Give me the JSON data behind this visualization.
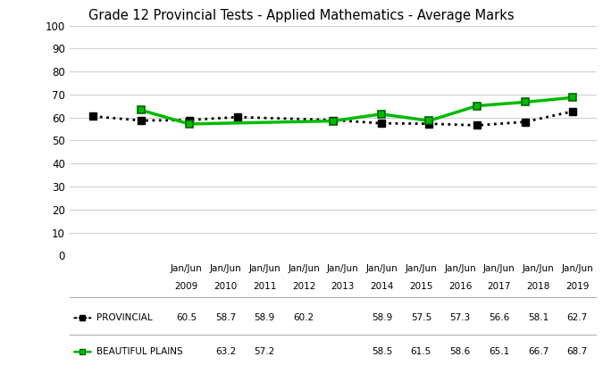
{
  "title": "Grade 12 Provincial Tests - Applied Mathematics - Average Marks",
  "x_labels": [
    "Jan/Jun\n2009",
    "Jan/Jun\n2010",
    "Jan/Jun\n2011",
    "Jan/Jun\n2012",
    "Jan/Jun\n2013",
    "Jan/Jun\n2014",
    "Jan/Jun\n2015",
    "Jan/Jun\n2016",
    "Jan/Jun\n2017",
    "Jan/Jun\n2018",
    "Jan/Jun\n2019"
  ],
  "x_positions": [
    0,
    1,
    2,
    3,
    4,
    5,
    6,
    7,
    8,
    9,
    10
  ],
  "provincial": {
    "label": "PROVINCIAL",
    "x": [
      0,
      1,
      2,
      3,
      5,
      6,
      7,
      8,
      9,
      10
    ],
    "y": [
      60.5,
      58.7,
      58.9,
      60.2,
      58.9,
      57.5,
      57.3,
      56.6,
      58.1,
      62.7
    ],
    "color": "#000000",
    "linestyle": "dotted",
    "linewidth": 2,
    "marker": "s",
    "markersize": 6
  },
  "beautiful_plains": {
    "label": "BEAUTIFUL PLAINS",
    "x": [
      1,
      2,
      5,
      6,
      7,
      8,
      9,
      10
    ],
    "y": [
      63.2,
      57.2,
      58.5,
      61.5,
      58.6,
      65.1,
      66.7,
      68.7
    ],
    "color": "#00bb00",
    "linestyle": "solid",
    "linewidth": 2.5,
    "marker": "s",
    "markersize": 6
  },
  "ylim": [
    0,
    100
  ],
  "yticks": [
    0,
    10,
    20,
    30,
    40,
    50,
    60,
    70,
    80,
    90,
    100
  ],
  "background_color": "#ffffff",
  "grid_color": "#d0d0d0",
  "table_provincial": [
    "60.5",
    "58.7",
    "58.9",
    "60.2",
    "",
    "58.9",
    "57.5",
    "57.3",
    "56.6",
    "58.1",
    "62.7"
  ],
  "table_beautiful_plains": [
    "",
    "63.2",
    "57.2",
    "",
    "",
    "58.5",
    "61.5",
    "58.6",
    "65.1",
    "66.7",
    "68.7"
  ],
  "title_fontsize": 10.5,
  "tick_fontsize": 8.5,
  "table_fontsize": 7.5
}
